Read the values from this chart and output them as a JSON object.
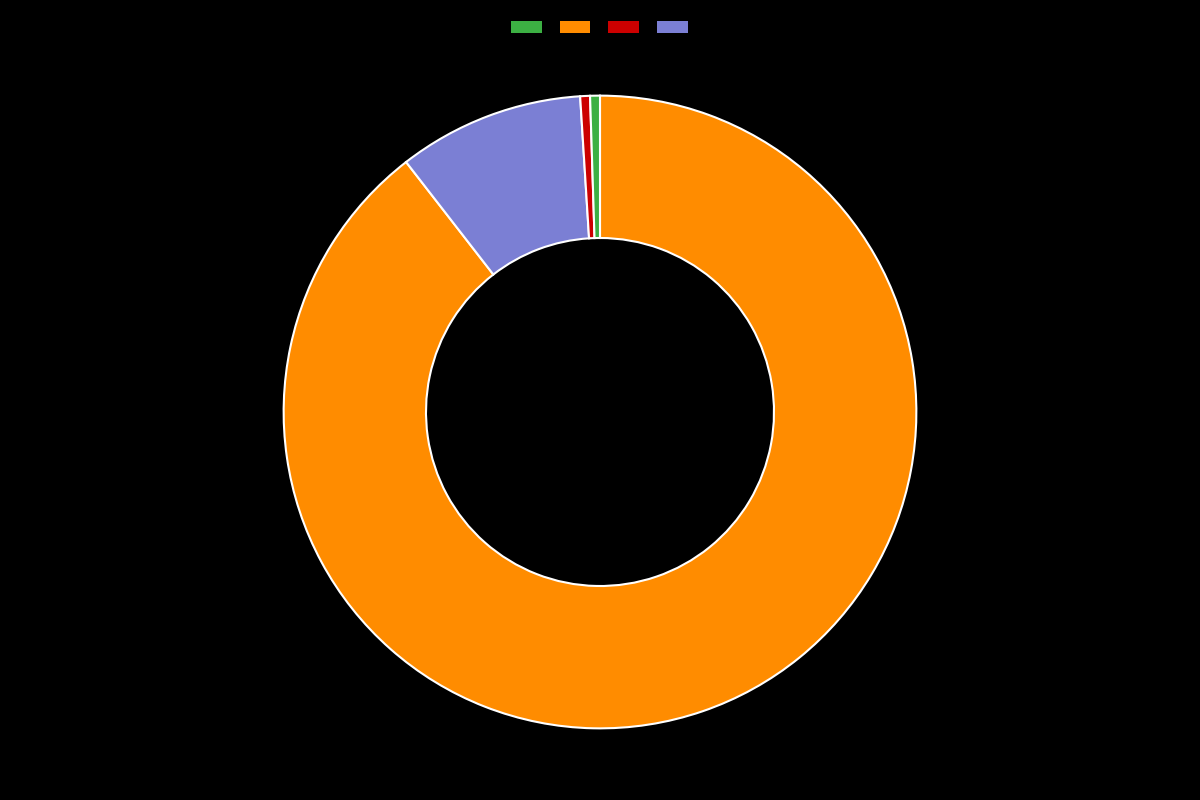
{
  "labels": [
    "orange",
    "blue",
    "red",
    "green"
  ],
  "values": [
    89.5,
    9.5,
    0.5,
    0.5
  ],
  "colors": [
    "#FF8C00",
    "#7B7FD4",
    "#CC0000",
    "#3CB043"
  ],
  "legend_colors": [
    "#3CB043",
    "#FF8C00",
    "#CC0000",
    "#7B7FD4"
  ],
  "background_color": "#000000",
  "wedge_edge_color": "#ffffff",
  "wedge_linewidth": 1.5,
  "donut_width": 0.45,
  "startangle": 90
}
